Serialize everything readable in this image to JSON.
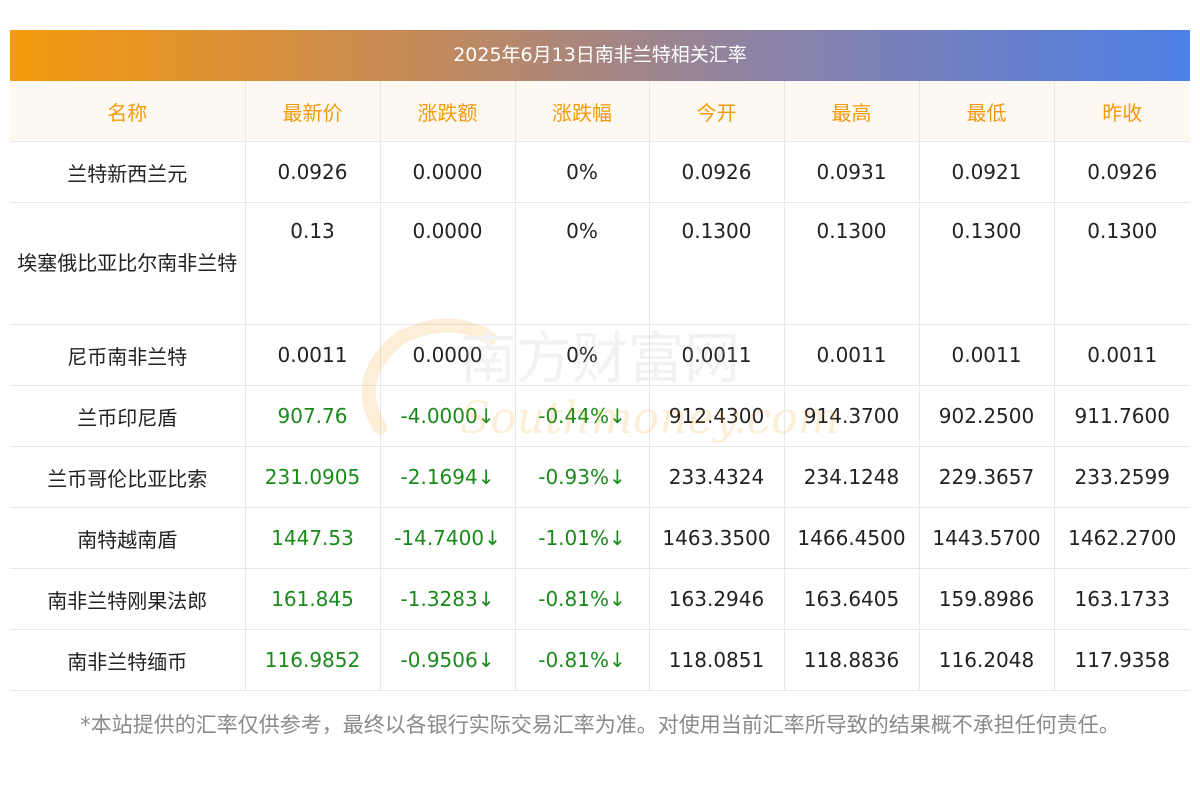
{
  "title": "2025年6月13日南非兰特相关汇率",
  "headers": [
    "名称",
    "最新价",
    "涨跌额",
    "涨跌幅",
    "今开",
    "最高",
    "最低",
    "昨收"
  ],
  "rows": [
    {
      "name": "兰特新西兰元",
      "latest": "0.0926",
      "change": "0.0000",
      "pct": "0%",
      "open": "0.0926",
      "high": "0.0931",
      "low": "0.0921",
      "prev": "0.0926"
    },
    {
      "name": "埃塞俄比亚比尔南非兰特",
      "latest": "0.13",
      "change": "0.0000",
      "pct": "0%",
      "open": "0.1300",
      "high": "0.1300",
      "low": "0.1300",
      "prev": "0.1300"
    },
    {
      "name": "尼币南非兰特",
      "latest": "0.0011",
      "change": "0.0000",
      "pct": "0%",
      "open": "0.0011",
      "high": "0.0011",
      "low": "0.0011",
      "prev": "0.0011"
    },
    {
      "name": "兰币印尼盾",
      "latest": "907.76",
      "change": "-4.0000↓",
      "pct": "-0.44%↓",
      "open": "912.4300",
      "high": "914.3700",
      "low": "902.2500",
      "prev": "911.7600"
    },
    {
      "name": "兰币哥伦比亚比索",
      "latest": "231.0905",
      "change": "-2.1694↓",
      "pct": "-0.93%↓",
      "open": "233.4324",
      "high": "234.1248",
      "low": "229.3657",
      "prev": "233.2599"
    },
    {
      "name": "南特越南盾",
      "latest": "1447.53",
      "change": "-14.7400↓",
      "pct": "-1.01%↓",
      "open": "1463.3500",
      "high": "1466.4500",
      "low": "1443.5700",
      "prev": "1462.2700"
    },
    {
      "name": "南非兰特刚果法郎",
      "latest": "161.845",
      "change": "-1.3283↓",
      "pct": "-0.81%↓",
      "open": "163.2946",
      "high": "163.6405",
      "low": "159.8986",
      "prev": "163.1733"
    },
    {
      "name": "南非兰特缅币",
      "latest": "116.9852",
      "change": "-0.9506↓",
      "pct": "-0.81%↓",
      "open": "118.0851",
      "high": "118.8836",
      "low": "116.2048",
      "prev": "117.9358"
    }
  ],
  "footnote": "*本站提供的汇率仅供参考，最终以各银行实际交易汇率为准。对使用当前汇率所导致的结果概不承担任何责任。",
  "watermark": {
    "cn": "南方财富网",
    "en": "Southmoney.com"
  },
  "colors": {
    "header_text": "#f29a0c",
    "down_value": "#1a8a1a",
    "title_left": "#f59a0c",
    "title_right": "#4d7fe6"
  }
}
